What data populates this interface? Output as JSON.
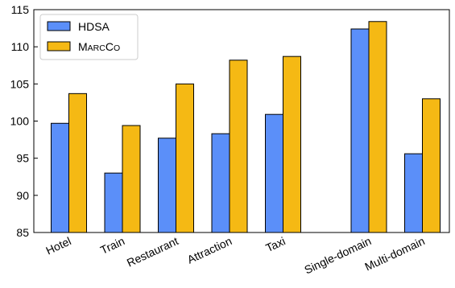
{
  "chart_data": {
    "type": "bar",
    "categories": [
      "Hotel",
      "Train",
      "Restaurant",
      "Attraction",
      "Taxi",
      "Single-domain",
      "Multi-domain"
    ],
    "gap_after_category": "Taxi",
    "series": [
      {
        "name": "HDSA",
        "color": "#5b8ff9",
        "values": [
          99.7,
          93.0,
          97.7,
          98.3,
          100.9,
          112.4,
          95.6
        ]
      },
      {
        "name": "MarCo",
        "color": "#f5b914",
        "values": [
          103.7,
          99.4,
          105.0,
          108.2,
          108.7,
          113.4,
          103.0
        ]
      }
    ],
    "ylim": [
      85,
      115
    ],
    "yticks": [
      85,
      90,
      95,
      100,
      105,
      110,
      115
    ],
    "title": "",
    "xlabel": "",
    "ylabel": "",
    "legend": "top-left",
    "grid": false
  }
}
